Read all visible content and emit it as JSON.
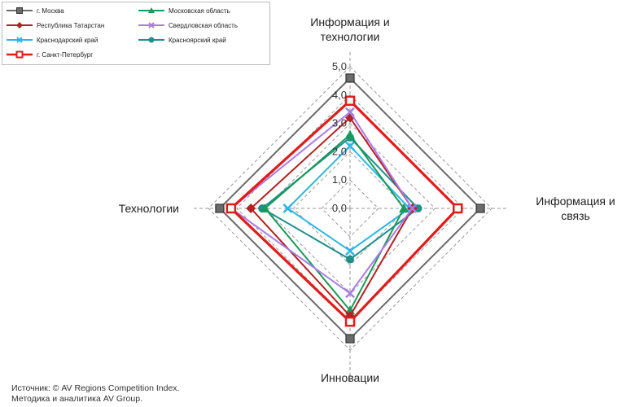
{
  "chart_data": {
    "type": "radar",
    "axes": [
      "Информация и технологии",
      "Информация и связь",
      "Инновации",
      "Технологии"
    ],
    "axis_label_lines": [
      [
        "Информация и",
        "технологии"
      ],
      [
        "Информация и",
        "связь"
      ],
      [
        "Инновации"
      ],
      [
        "Технологии"
      ]
    ],
    "rlim": [
      0,
      5
    ],
    "ticks": [
      "0,0",
      "1,0",
      "2,0",
      "3,0",
      "4,0",
      "5,0"
    ],
    "series": [
      {
        "name": "г. Москва",
        "color": "#6b6b6b",
        "marker": "square",
        "values": [
          4.6,
          4.6,
          4.6,
          4.6
        ]
      },
      {
        "name": "Республика Татарстан",
        "color": "#b22222",
        "marker": "diamond",
        "values": [
          3.2,
          2.2,
          3.8,
          3.5
        ]
      },
      {
        "name": "Краснодарский край",
        "color": "#29b6e8",
        "marker": "cross",
        "values": [
          2.2,
          2.1,
          1.5,
          2.2
        ]
      },
      {
        "name": "г. Санкт-Петербург",
        "color": "#e31b1b",
        "marker": "open-square",
        "values": [
          3.8,
          3.8,
          4.0,
          4.2
        ]
      },
      {
        "name": "Московская область",
        "color": "#1a9a5a",
        "marker": "triangle",
        "values": [
          2.6,
          1.9,
          3.6,
          3.0
        ]
      },
      {
        "name": "Свердловская область",
        "color": "#a97ce6",
        "marker": "cross",
        "values": [
          3.4,
          2.2,
          3.0,
          4.2
        ]
      },
      {
        "name": "Красноярский край",
        "color": "#1f8f8a",
        "marker": "circle",
        "values": [
          2.5,
          2.4,
          1.8,
          3.1
        ]
      }
    ]
  },
  "legend": {
    "items": [
      "г. Москва",
      "Московская область",
      "Республика Татарстан",
      "Свердловская область",
      "Краснодарский край",
      "Красноярский край",
      "г. Санкт-Петербург"
    ]
  },
  "source": {
    "line1": "Источник: © AV Regions Competition Index.",
    "line2": "Методика и аналитика AV Group."
  }
}
